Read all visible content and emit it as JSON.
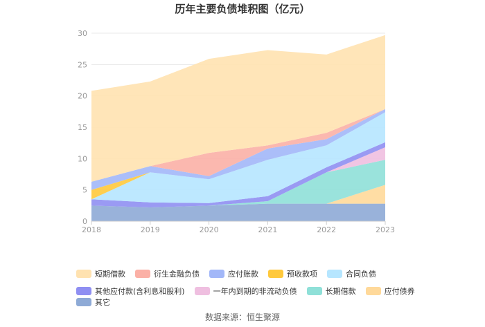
{
  "source": "数据来源：恒生聚源",
  "chart_data": {
    "type": "area",
    "stacked": true,
    "title": "历年主要负债堆积图（亿元）",
    "x": [
      "2018",
      "2019",
      "2020",
      "2021",
      "2022",
      "2023"
    ],
    "ylim": [
      0,
      30
    ],
    "yticks": [
      "0",
      "5",
      "10",
      "15",
      "20",
      "25",
      "30"
    ],
    "grid": true,
    "legend_position": "bottom",
    "series": [
      {
        "name": "其它",
        "color": "#8eaad6",
        "values": [
          2.5,
          2.2,
          2.5,
          2.8,
          2.8,
          2.8
        ]
      },
      {
        "name": "应付债券",
        "color": "#ffd99a",
        "values": [
          0,
          0,
          0,
          0,
          0,
          3.0
        ]
      },
      {
        "name": "长期借款",
        "color": "#8fe0d8",
        "values": [
          0,
          0,
          0,
          0.4,
          5.0,
          4.0
        ]
      },
      {
        "name": "一年内到期的非流动负债",
        "color": "#efbfe0",
        "values": [
          0,
          0,
          0,
          0,
          0,
          2.0
        ]
      },
      {
        "name": "其他应付款(含利息和股利)",
        "color": "#8f8ff2",
        "values": [
          1.0,
          0.8,
          0.4,
          0.8,
          0.8,
          0.8
        ]
      },
      {
        "name": "合同负债",
        "color": "#b6e6ff",
        "values": [
          0,
          4.8,
          3.8,
          5.8,
          3.5,
          4.8
        ]
      },
      {
        "name": "预收款项",
        "color": "#ffc93c",
        "values": [
          1.5,
          0,
          0,
          0,
          0,
          0
        ]
      },
      {
        "name": "应付账款",
        "color": "#a2b7f8",
        "values": [
          1.3,
          1.0,
          0.5,
          1.8,
          1.0,
          0.5
        ]
      },
      {
        "name": "衍生金融负债",
        "color": "#fbb0a6",
        "values": [
          0,
          0,
          3.7,
          0.5,
          1.0,
          0
        ]
      },
      {
        "name": "短期借款",
        "color": "#ffe2b0",
        "values": [
          14.5,
          13.5,
          15.0,
          15.2,
          12.5,
          11.8
        ]
      }
    ],
    "legend_order": [
      "短期借款",
      "衍生金融负债",
      "应付账款",
      "预收款项",
      "合同负债",
      "其他应付款(含利息和股利)",
      "一年内到期的非流动负债",
      "长期借款",
      "应付债券",
      "其它"
    ]
  }
}
